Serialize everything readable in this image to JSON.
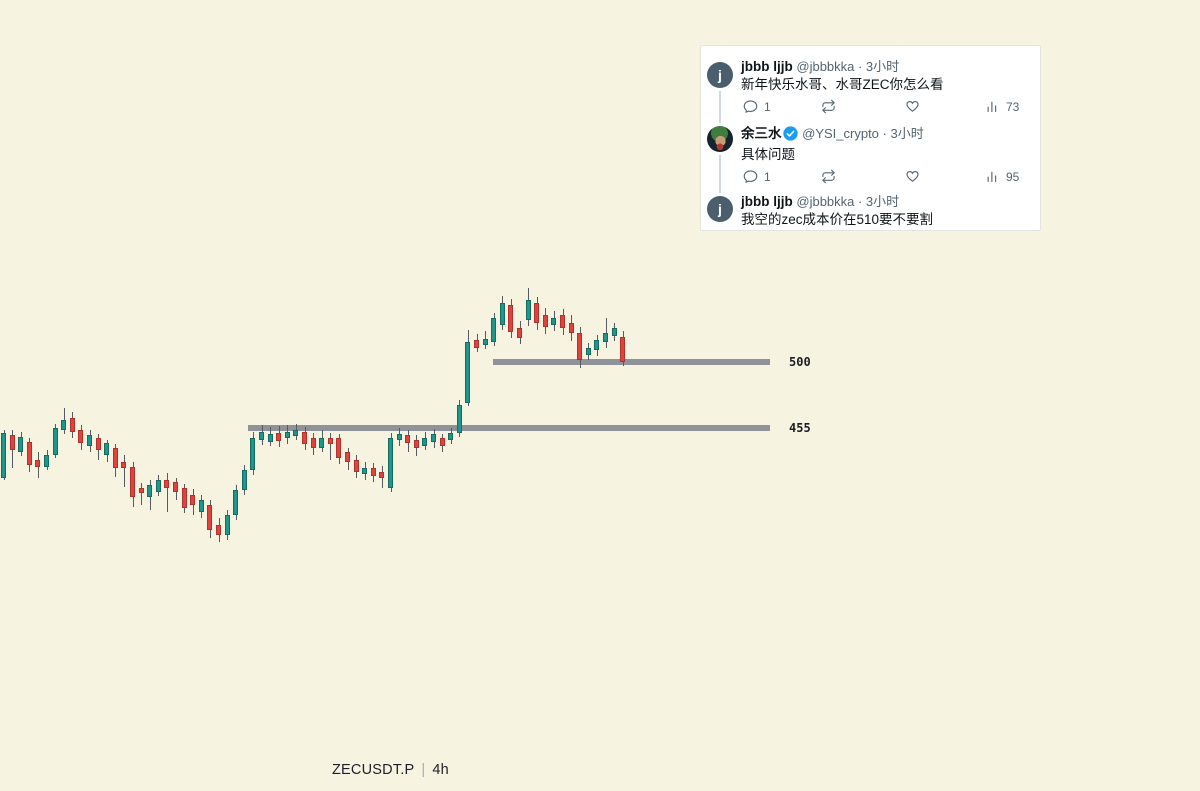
{
  "page": {
    "background": "#f7f3e1"
  },
  "symbol_bar": {
    "symbol": "ZECUSDT.P",
    "separator": "|",
    "interval": "4h"
  },
  "chart_data": {
    "type": "candlestick",
    "title": "ZECUSDT.P 4h candlestick chart",
    "symbol": "ZECUSDT.P",
    "interval": "4h",
    "grid": false,
    "up_color": "#20968a",
    "down_color": "#e0433d",
    "wick_color": "#565b63",
    "level_line_color": "#8f9299",
    "price_anchors": [
      {
        "price": 500,
        "y": 362
      },
      {
        "price": 455,
        "y": 428
      }
    ],
    "x_start": 4,
    "x_step": 8.6,
    "ylim": [
      375,
      552
    ],
    "level_lines": [
      {
        "price": 500,
        "label": "500",
        "x_start": 493,
        "x_end": 770
      },
      {
        "price": 455,
        "label": "455",
        "x_start": 248,
        "x_end": 770
      }
    ],
    "ohlc_note": "candles are [open, high, low, close]",
    "candles": [
      [
        420.9,
        453.6,
        419.5,
        451.6
      ],
      [
        450.2,
        453.6,
        427.7,
        440.0
      ],
      [
        438.6,
        452.3,
        435.9,
        448.9
      ],
      [
        445.5,
        448.2,
        425.0,
        429.8
      ],
      [
        433.2,
        438.6,
        420.9,
        428.4
      ],
      [
        428.4,
        440.0,
        426.4,
        436.6
      ],
      [
        436.6,
        457.7,
        434.5,
        455.0
      ],
      [
        453.6,
        468.6,
        450.9,
        460.5
      ],
      [
        461.8,
        465.9,
        448.2,
        452.3
      ],
      [
        453.6,
        457.0,
        440.0,
        444.8
      ],
      [
        442.7,
        453.6,
        438.6,
        450.2
      ],
      [
        448.2,
        450.9,
        433.2,
        440.0
      ],
      [
        436.6,
        446.8,
        431.8,
        444.8
      ],
      [
        441.4,
        444.1,
        421.6,
        427.7
      ],
      [
        431.8,
        436.6,
        414.8,
        427.7
      ],
      [
        428.4,
        431.8,
        401.1,
        408.0
      ],
      [
        414.1,
        417.5,
        402.5,
        410.7
      ],
      [
        408.0,
        419.5,
        399.1,
        416.1
      ],
      [
        411.4,
        422.7,
        408.6,
        419.5
      ],
      [
        419.5,
        424.3,
        397.7,
        414.1
      ],
      [
        418.2,
        420.9,
        405.9,
        411.4
      ],
      [
        414.1,
        416.8,
        397.0,
        400.5
      ],
      [
        409.3,
        413.4,
        395.7,
        402.5
      ],
      [
        397.7,
        409.3,
        393.6,
        405.9
      ],
      [
        402.5,
        405.9,
        380.0,
        385.5
      ],
      [
        388.9,
        393.6,
        377.3,
        382.0
      ],
      [
        382.0,
        399.1,
        378.6,
        395.7
      ],
      [
        395.7,
        416.1,
        392.3,
        412.7
      ],
      [
        412.7,
        429.8,
        409.3,
        426.4
      ],
      [
        426.4,
        452.3,
        423.0,
        448.2
      ],
      [
        446.8,
        457.0,
        443.4,
        452.3
      ],
      [
        445.5,
        455.7,
        442.7,
        450.9
      ],
      [
        451.6,
        456.3,
        442.0,
        446.1
      ],
      [
        448.2,
        457.0,
        444.1,
        452.3
      ],
      [
        449.5,
        457.7,
        446.8,
        453.6
      ],
      [
        452.3,
        455.7,
        440.0,
        444.1
      ],
      [
        448.2,
        451.6,
        436.6,
        441.4
      ],
      [
        441.4,
        453.6,
        438.6,
        448.2
      ],
      [
        448.2,
        451.6,
        433.2,
        444.1
      ],
      [
        448.2,
        450.9,
        430.5,
        434.5
      ],
      [
        438.6,
        441.4,
        426.4,
        431.8
      ],
      [
        433.2,
        436.6,
        420.9,
        425.0
      ],
      [
        423.6,
        431.8,
        419.5,
        427.7
      ],
      [
        427.7,
        431.1,
        418.2,
        422.3
      ],
      [
        425.0,
        429.1,
        414.1,
        420.9
      ],
      [
        414.1,
        451.6,
        411.4,
        448.2
      ],
      [
        446.8,
        455.0,
        442.7,
        450.9
      ],
      [
        450.2,
        453.6,
        438.6,
        444.8
      ],
      [
        446.8,
        450.2,
        435.9,
        441.4
      ],
      [
        442.7,
        452.3,
        440.0,
        448.2
      ],
      [
        445.5,
        454.3,
        441.4,
        450.9
      ],
      [
        448.2,
        450.9,
        438.6,
        442.7
      ],
      [
        446.8,
        455.0,
        444.1,
        451.6
      ],
      [
        451.6,
        474.1,
        448.9,
        470.7
      ],
      [
        472.0,
        521.8,
        470.0,
        513.6
      ],
      [
        515.0,
        519.1,
        506.8,
        509.5
      ],
      [
        511.6,
        521.1,
        508.9,
        515.7
      ],
      [
        513.6,
        533.4,
        510.9,
        530.0
      ],
      [
        525.2,
        545.0,
        521.8,
        540.2
      ],
      [
        538.9,
        543.0,
        516.4,
        520.5
      ],
      [
        523.2,
        528.0,
        512.3,
        516.4
      ],
      [
        528.6,
        550.5,
        524.5,
        542.3
      ],
      [
        540.2,
        544.3,
        521.8,
        526.6
      ],
      [
        532.0,
        536.8,
        519.1,
        523.9
      ],
      [
        525.2,
        534.8,
        521.1,
        530.0
      ],
      [
        532.0,
        536.1,
        518.4,
        523.2
      ],
      [
        526.6,
        532.0,
        514.3,
        519.8
      ],
      [
        519.8,
        523.9,
        495.9,
        501.4
      ],
      [
        504.8,
        513.0,
        501.4,
        509.5
      ],
      [
        508.2,
        518.4,
        504.1,
        515.0
      ],
      [
        513.6,
        530.0,
        509.5,
        519.8
      ],
      [
        517.7,
        526.6,
        514.3,
        523.2
      ],
      [
        517.1,
        521.1,
        497.3,
        500.0
      ]
    ]
  },
  "tweet_thread": {
    "items": [
      {
        "name": "jbbb ljjb",
        "meta": "@jbbbkka · 3小时",
        "avatar_letter": "j",
        "verified": false,
        "text": "新年快乐水哥、水哥ZEC你怎么看",
        "reply_count": "1",
        "view_count": "73"
      },
      {
        "name": "余三水",
        "meta": "@YSI_crypto · 3小时",
        "verified": true,
        "text": "具体问题",
        "reply_count": "1",
        "view_count": "95"
      },
      {
        "name": "jbbb ljjb",
        "meta": "@jbbbkka · 3小时",
        "avatar_letter": "j",
        "verified": false,
        "text": "我空的zec成本价在510要不要割"
      }
    ]
  }
}
